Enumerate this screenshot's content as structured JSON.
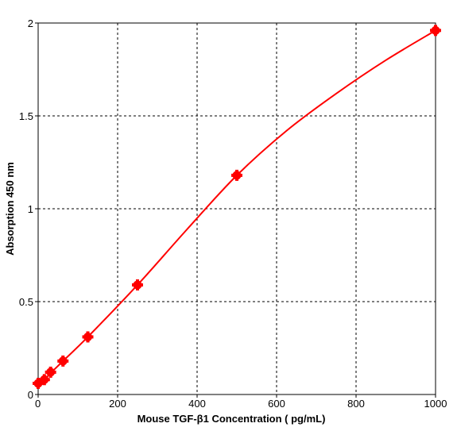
{
  "chart_data": {
    "type": "scatter",
    "title": "",
    "xlabel": "Mouse TGF-β1 Concentration ( pg/mL)",
    "ylabel": "Absorption 450 nm",
    "xlim": [
      0,
      1000
    ],
    "ylim": [
      0,
      2
    ],
    "x_ticks": [
      "0",
      "200",
      "400",
      "600",
      "800",
      "1000"
    ],
    "y_ticks": [
      "0",
      "0.5",
      "1",
      "1.5",
      "2"
    ],
    "grid": true,
    "legend": "none",
    "colors": {
      "series": "#ff0000",
      "grid": "#000000",
      "axis": "#000000"
    },
    "series": [
      {
        "points": [
          {
            "x": 0,
            "y": 0.06
          },
          {
            "x": 15.6,
            "y": 0.08
          },
          {
            "x": 31.3,
            "y": 0.12
          },
          {
            "x": 62.5,
            "y": 0.18
          },
          {
            "x": 125,
            "y": 0.31
          },
          {
            "x": 250,
            "y": 0.59
          },
          {
            "x": 500,
            "y": 1.18
          },
          {
            "x": 1000,
            "y": 1.96
          }
        ],
        "fit_curve": [
          {
            "x": 0,
            "y": 0.06
          },
          {
            "x": 15.6,
            "y": 0.08
          },
          {
            "x": 31.3,
            "y": 0.115
          },
          {
            "x": 62.5,
            "y": 0.18
          },
          {
            "x": 125,
            "y": 0.31
          },
          {
            "x": 250,
            "y": 0.59
          },
          {
            "x": 375,
            "y": 0.89
          },
          {
            "x": 500,
            "y": 1.18
          },
          {
            "x": 625,
            "y": 1.42
          },
          {
            "x": 750,
            "y": 1.62
          },
          {
            "x": 875,
            "y": 1.8
          },
          {
            "x": 1000,
            "y": 1.96
          }
        ]
      }
    ]
  }
}
